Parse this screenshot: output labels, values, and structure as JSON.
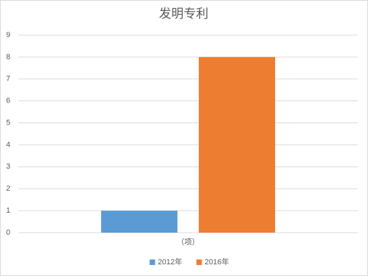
{
  "chart_data": {
    "type": "bar",
    "title": "发明专利",
    "categories": [
      "（项）"
    ],
    "series": [
      {
        "name": "2012年",
        "color": "#5b9bd5",
        "values": [
          1
        ]
      },
      {
        "name": "2016年",
        "color": "#ed7d31",
        "values": [
          8
        ]
      }
    ],
    "ylim": [
      0,
      9
    ],
    "yticks": [
      0,
      1,
      2,
      3,
      4,
      5,
      6,
      7,
      8,
      9
    ],
    "grid": true,
    "legend": "bottom"
  }
}
